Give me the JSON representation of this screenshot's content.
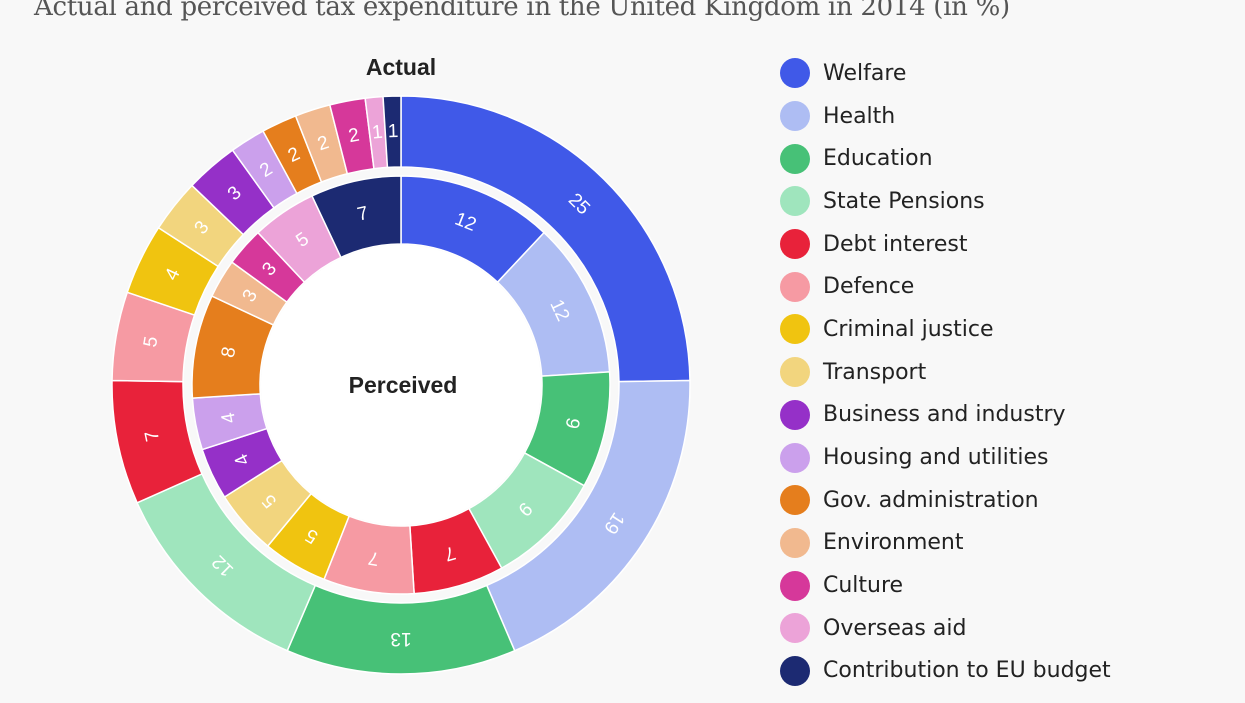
{
  "chart_data": {
    "type": "pie",
    "title": "Actual and perceived tax expenditure in the United Kingdom in 2014 (in %)",
    "categories": [
      "Welfare",
      "Health",
      "Education",
      "State Pensions",
      "Debt interest",
      "Defence",
      "Criminal justice",
      "Transport",
      "Business and industry",
      "Housing and utilities",
      "Gov. administration",
      "Environment",
      "Culture",
      "Overseas aid",
      "Contribution to EU budget"
    ],
    "colors": [
      "#4059e8",
      "#aebdf3",
      "#47c177",
      "#9fe5bd",
      "#e8223a",
      "#f69aa3",
      "#f0c410",
      "#f2d57e",
      "#9530c8",
      "#cba0ec",
      "#e57e1d",
      "#f1b98f",
      "#d6389a",
      "#eca3d8",
      "#1c2a72"
    ],
    "series": [
      {
        "name": "Actual",
        "values": [
          25,
          19,
          13,
          12,
          7,
          5,
          4,
          3,
          3,
          2,
          2,
          2,
          2,
          1,
          1
        ]
      },
      {
        "name": "Perceived",
        "values": [
          12,
          12,
          9,
          9,
          7,
          7,
          5,
          5,
          4,
          4,
          8,
          3,
          3,
          5,
          7
        ]
      }
    ],
    "legend": "right"
  }
}
